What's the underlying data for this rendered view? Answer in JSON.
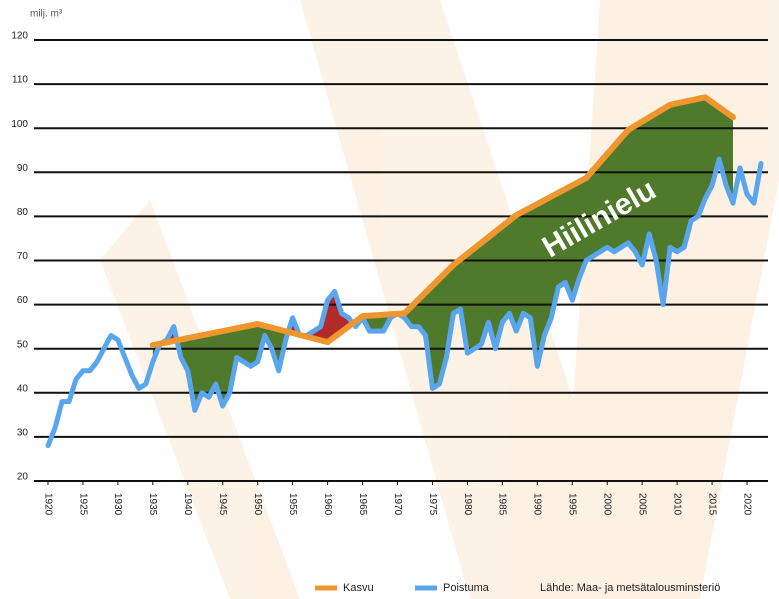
{
  "chart_data": {
    "type": "line",
    "unit_label": "milj. m³",
    "annotation": "Hiilinielu",
    "source": "Lähde: Maa- ja metsätalousminsteriö",
    "xlim": [
      1918,
      2023
    ],
    "xticks": [
      1920,
      1925,
      1930,
      1935,
      1940,
      1945,
      1950,
      1955,
      1960,
      1965,
      1970,
      1975,
      1980,
      1985,
      1990,
      1995,
      2000,
      2005,
      2010,
      2015,
      2020
    ],
    "ylim": [
      20,
      120
    ],
    "yticks": [
      20,
      30,
      40,
      50,
      60,
      70,
      80,
      90,
      100,
      110,
      120
    ],
    "grid": true,
    "series": [
      {
        "name": "Kasvu",
        "color": "#f0962e",
        "x": [
          1935,
          1950,
          1960,
          1965,
          1971,
          1978,
          1987,
          1997,
          2003,
          2009,
          2014,
          2018
        ],
        "values": [
          50.8,
          55.6,
          51.5,
          57.4,
          58,
          69,
          80.3,
          88.7,
          99.6,
          105.3,
          107,
          102.5
        ]
      },
      {
        "name": "Poistuma",
        "color": "#5aa6ee",
        "x": [
          1920,
          1921,
          1922,
          1923,
          1924,
          1925,
          1926,
          1927,
          1928,
          1929,
          1930,
          1931,
          1932,
          1933,
          1934,
          1935,
          1936,
          1937,
          1938,
          1939,
          1940,
          1941,
          1942,
          1943,
          1944,
          1945,
          1946,
          1947,
          1948,
          1949,
          1950,
          1951,
          1952,
          1953,
          1954,
          1955,
          1956,
          1957,
          1958,
          1959,
          1960,
          1961,
          1962,
          1963,
          1964,
          1965,
          1966,
          1967,
          1968,
          1969,
          1970,
          1971,
          1972,
          1973,
          1974,
          1975,
          1976,
          1977,
          1978,
          1979,
          1980,
          1981,
          1982,
          1983,
          1984,
          1985,
          1986,
          1987,
          1988,
          1989,
          1990,
          1991,
          1992,
          1993,
          1994,
          1995,
          1996,
          1997,
          1998,
          1999,
          2000,
          2001,
          2002,
          2003,
          2004,
          2005,
          2006,
          2007,
          2008,
          2009,
          2010,
          2011,
          2012,
          2013,
          2014,
          2015,
          2016,
          2017,
          2018,
          2019,
          2020,
          2021,
          2022
        ],
        "values": [
          28,
          32,
          38,
          38,
          43,
          45,
          45,
          47,
          50,
          53,
          52,
          48,
          44,
          41,
          42,
          47,
          51,
          52,
          55,
          48,
          45,
          36,
          40,
          39,
          42,
          37,
          40,
          48,
          47,
          46,
          47,
          53,
          50,
          45,
          52,
          57,
          53,
          53,
          54,
          55,
          61,
          63,
          58,
          57,
          55,
          57,
          54,
          54,
          54,
          57,
          58,
          57,
          55,
          55,
          53,
          41,
          42,
          48,
          58,
          59,
          49,
          50,
          51,
          56,
          50,
          56,
          58,
          54,
          58,
          57,
          46,
          53,
          57,
          64,
          65,
          61,
          66,
          70,
          71,
          72,
          73,
          72,
          73,
          74,
          72,
          69,
          76,
          70,
          60,
          73,
          72,
          73,
          79,
          80,
          84,
          87,
          93,
          87,
          83,
          91,
          85,
          83,
          92
        ]
      }
    ],
    "legend": "bottom"
  }
}
